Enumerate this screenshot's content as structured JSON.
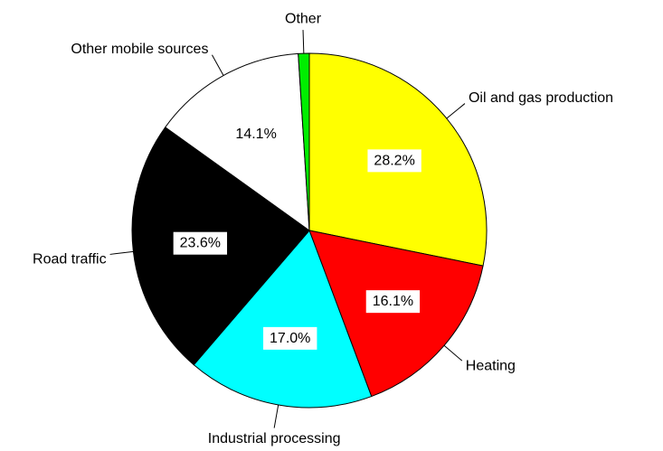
{
  "chart_data": {
    "type": "pie",
    "categories": [
      "Oil and gas production",
      "Heating",
      "Industrial processing",
      "Road traffic",
      "Other mobile sources",
      "Other"
    ],
    "values": [
      28.2,
      16.1,
      17.0,
      23.6,
      14.1,
      1.0
    ],
    "value_labels": [
      "28.2%",
      "16.1%",
      "17.0%",
      "23.6%",
      "14.1%",
      null
    ],
    "colors": [
      "#ffff00",
      "#ff0000",
      "#00ffff",
      "#000000",
      "#ffffff",
      "#00ee00"
    ]
  }
}
